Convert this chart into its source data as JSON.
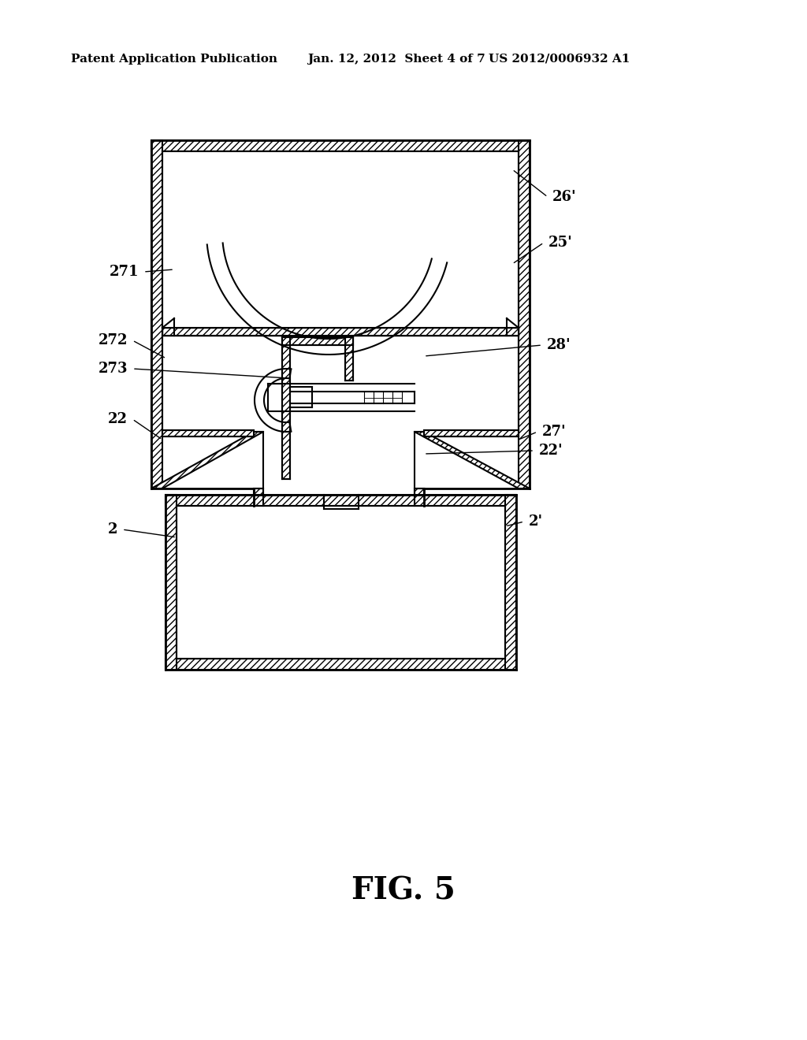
{
  "bg_color": "#ffffff",
  "line_color": "#000000",
  "header_left": "Patent Application Publication",
  "header_mid": "Jan. 12, 2012  Sheet 4 of 7",
  "header_right": "US 2012/0006932 A1",
  "fig_label": "FIG. 5"
}
